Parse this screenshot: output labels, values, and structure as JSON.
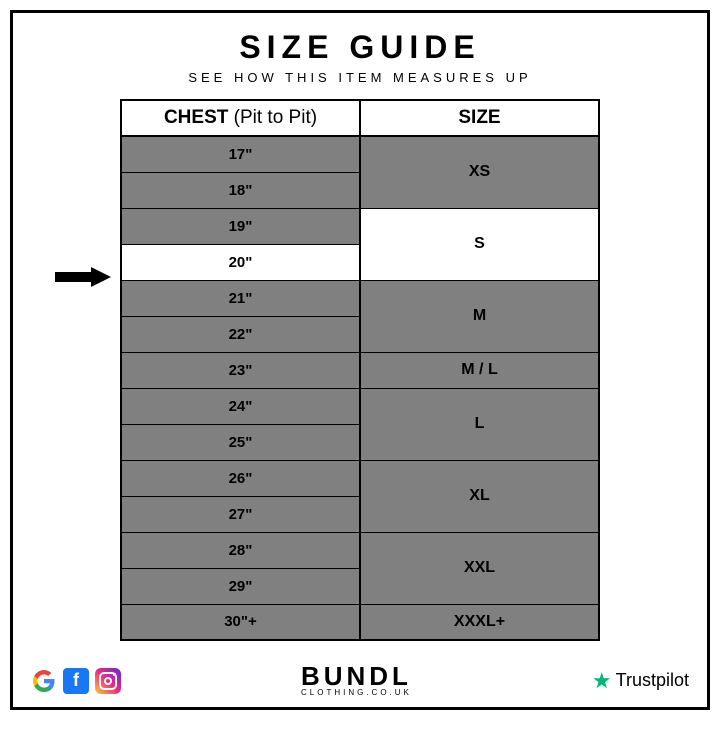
{
  "header": {
    "title": "SIZE GUIDE",
    "subtitle": "SEE HOW THIS ITEM MEASURES UP"
  },
  "table": {
    "col1_header": "CHEST",
    "col1_header_paren": "(Pit to Pit)",
    "col2_header": "SIZE",
    "highlighted_row_index": 3,
    "chest_rows": [
      {
        "v": "17\"",
        "highlight": false
      },
      {
        "v": "18\"",
        "highlight": false
      },
      {
        "v": "19\"",
        "highlight": false
      },
      {
        "v": "20\"",
        "highlight": true
      },
      {
        "v": "21\"",
        "highlight": false
      },
      {
        "v": "22\"",
        "highlight": false
      },
      {
        "v": "23\"",
        "highlight": false
      },
      {
        "v": "24\"",
        "highlight": false
      },
      {
        "v": "25\"",
        "highlight": false
      },
      {
        "v": "26\"",
        "highlight": false
      },
      {
        "v": "27\"",
        "highlight": false
      },
      {
        "v": "28\"",
        "highlight": false
      },
      {
        "v": "29\"",
        "highlight": false
      },
      {
        "v": "30\"+",
        "highlight": false
      }
    ],
    "size_groups": [
      {
        "label": "XS",
        "span": 2,
        "highlight": false
      },
      {
        "label": "S",
        "span": 2,
        "highlight": true
      },
      {
        "label": "M",
        "span": 2,
        "highlight": false
      },
      {
        "label": "M / L",
        "span": 1,
        "highlight": false
      },
      {
        "label": "L",
        "span": 2,
        "highlight": false
      },
      {
        "label": "XL",
        "span": 2,
        "highlight": false
      },
      {
        "label": "XXL",
        "span": 2,
        "highlight": false
      },
      {
        "label": "XXXL+",
        "span": 1,
        "highlight": false
      }
    ]
  },
  "footer": {
    "brand_name": "BUNDL",
    "brand_domain": "CLOTHING.CO.UK",
    "trustpilot": "Trustpilot"
  },
  "colors": {
    "cell_bg": "#808080",
    "highlight_bg": "#ffffff",
    "border": "#000000",
    "trust_star": "#00b67a",
    "fb": "#1877f2"
  }
}
